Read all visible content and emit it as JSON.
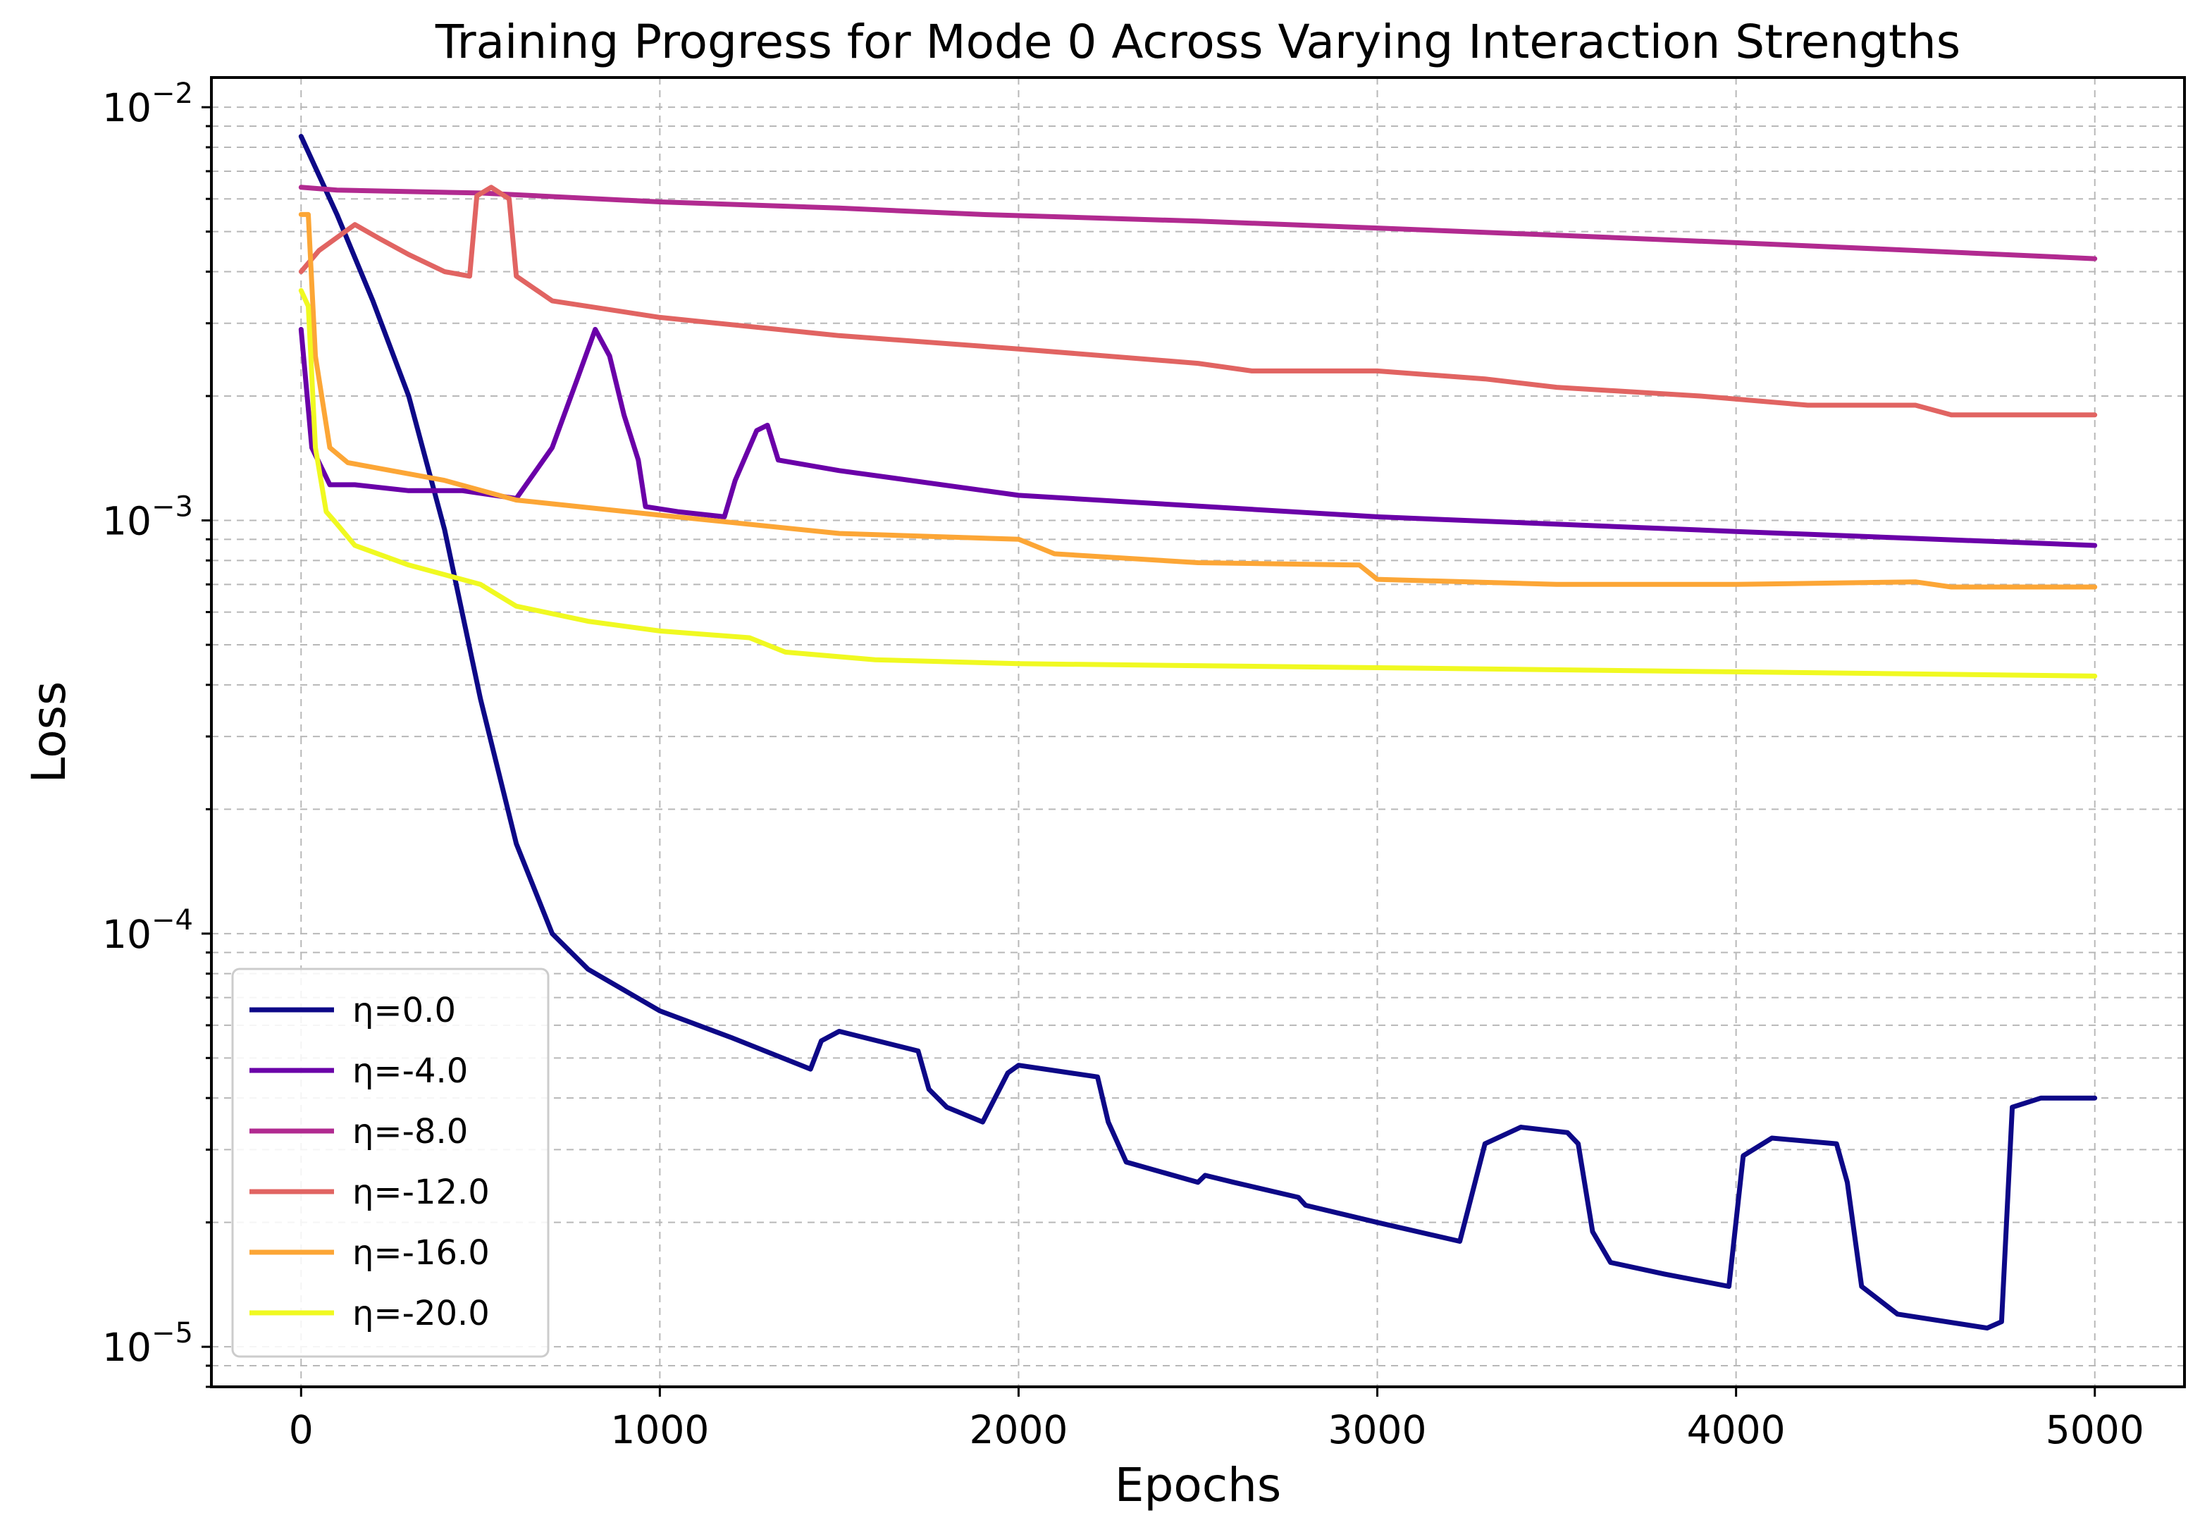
{
  "chart_data": {
    "type": "line",
    "title": "Training Progress for Mode 0 Across Varying Interaction Strengths",
    "xlabel": "Epochs",
    "ylabel": "Loss",
    "xlim": [
      -250,
      5250
    ],
    "ylim": [
      8e-06,
      0.0118
    ],
    "yscale": "log",
    "x_ticks": [
      0,
      1000,
      2000,
      3000,
      4000,
      5000
    ],
    "x_tick_labels": [
      "0",
      "1000",
      "2000",
      "3000",
      "4000",
      "5000"
    ],
    "y_ticks": [
      {
        "value": 0.01,
        "base": "10",
        "exp": "−2"
      },
      {
        "value": 0.001,
        "base": "10",
        "exp": "−3"
      },
      {
        "value": 0.0001,
        "base": "10",
        "exp": "−4"
      },
      {
        "value": 1e-05,
        "base": "10",
        "exp": "−5"
      }
    ],
    "grid": true,
    "legend_position": "lower-left",
    "series": [
      {
        "name": "η=0.0",
        "color": "#0d0887",
        "points": [
          [
            0,
            0.0085
          ],
          [
            100,
            0.0055
          ],
          [
            200,
            0.0034
          ],
          [
            300,
            0.002
          ],
          [
            400,
            0.00095
          ],
          [
            500,
            0.00037
          ],
          [
            600,
            0.000165
          ],
          [
            700,
            0.0001
          ],
          [
            800,
            8.2e-05
          ],
          [
            1000,
            6.5e-05
          ],
          [
            1200,
            5.6e-05
          ],
          [
            1420,
            4.7e-05
          ],
          [
            1450,
            5.5e-05
          ],
          [
            1500,
            5.8e-05
          ],
          [
            1720,
            5.2e-05
          ],
          [
            1750,
            4.2e-05
          ],
          [
            1800,
            3.8e-05
          ],
          [
            1900,
            3.5e-05
          ],
          [
            1970,
            4.6e-05
          ],
          [
            2000,
            4.8e-05
          ],
          [
            2220,
            4.5e-05
          ],
          [
            2250,
            3.5e-05
          ],
          [
            2300,
            2.8e-05
          ],
          [
            2500,
            2.5e-05
          ],
          [
            2520,
            2.6e-05
          ],
          [
            2600,
            2.5e-05
          ],
          [
            2780,
            2.3e-05
          ],
          [
            2800,
            2.2e-05
          ],
          [
            3000,
            2e-05
          ],
          [
            3230,
            1.8e-05
          ],
          [
            3250,
            2.1e-05
          ],
          [
            3300,
            3.1e-05
          ],
          [
            3400,
            3.4e-05
          ],
          [
            3530,
            3.3e-05
          ],
          [
            3560,
            3.1e-05
          ],
          [
            3600,
            1.9e-05
          ],
          [
            3650,
            1.6e-05
          ],
          [
            3800,
            1.5e-05
          ],
          [
            3980,
            1.4e-05
          ],
          [
            4020,
            2.9e-05
          ],
          [
            4100,
            3.2e-05
          ],
          [
            4280,
            3.1e-05
          ],
          [
            4310,
            2.5e-05
          ],
          [
            4350,
            1.4e-05
          ],
          [
            4450,
            1.2e-05
          ],
          [
            4700,
            1.11e-05
          ],
          [
            4740,
            1.15e-05
          ],
          [
            4770,
            3.8e-05
          ],
          [
            4850,
            4e-05
          ],
          [
            5000,
            4e-05
          ]
        ]
      },
      {
        "name": "η=-4.0",
        "color": "#6a00a8",
        "points": [
          [
            0,
            0.0029
          ],
          [
            30,
            0.0015
          ],
          [
            80,
            0.00122
          ],
          [
            150,
            0.00122
          ],
          [
            300,
            0.00118
          ],
          [
            450,
            0.00118
          ],
          [
            600,
            0.00113
          ],
          [
            700,
            0.0015
          ],
          [
            770,
            0.0022
          ],
          [
            820,
            0.0029
          ],
          [
            860,
            0.0025
          ],
          [
            900,
            0.0018
          ],
          [
            940,
            0.0014
          ],
          [
            960,
            0.00108
          ],
          [
            1050,
            0.00105
          ],
          [
            1180,
            0.00102
          ],
          [
            1210,
            0.00125
          ],
          [
            1270,
            0.00165
          ],
          [
            1300,
            0.0017
          ],
          [
            1330,
            0.0014
          ],
          [
            1500,
            0.00132
          ],
          [
            2000,
            0.00115
          ],
          [
            3000,
            0.00102
          ],
          [
            4000,
            0.00094
          ],
          [
            5000,
            0.00087
          ]
        ]
      },
      {
        "name": "η=-8.0",
        "color": "#b12a90",
        "points": [
          [
            0,
            0.0064
          ],
          [
            100,
            0.0063
          ],
          [
            500,
            0.0062
          ],
          [
            1000,
            0.0059
          ],
          [
            1500,
            0.0057
          ],
          [
            1900,
            0.0055
          ],
          [
            2500,
            0.0053
          ],
          [
            3000,
            0.0051
          ],
          [
            3500,
            0.0049
          ],
          [
            4000,
            0.0047
          ],
          [
            4500,
            0.0045
          ],
          [
            5000,
            0.0043
          ]
        ]
      },
      {
        "name": "η=-12.0",
        "color": "#e16462",
        "points": [
          [
            0,
            0.004
          ],
          [
            50,
            0.0045
          ],
          [
            150,
            0.0052
          ],
          [
            220,
            0.0048
          ],
          [
            300,
            0.0044
          ],
          [
            400,
            0.004
          ],
          [
            470,
            0.0039
          ],
          [
            490,
            0.0061
          ],
          [
            530,
            0.0064
          ],
          [
            580,
            0.006
          ],
          [
            600,
            0.0039
          ],
          [
            700,
            0.0034
          ],
          [
            1000,
            0.0031
          ],
          [
            1500,
            0.0028
          ],
          [
            2000,
            0.0026
          ],
          [
            2500,
            0.0024
          ],
          [
            2650,
            0.0023
          ],
          [
            3000,
            0.0023
          ],
          [
            3300,
            0.0022
          ],
          [
            3500,
            0.0021
          ],
          [
            3900,
            0.002
          ],
          [
            4200,
            0.0019
          ],
          [
            4500,
            0.0019
          ],
          [
            4600,
            0.0018
          ],
          [
            5000,
            0.0018
          ]
        ]
      },
      {
        "name": "η=-16.0",
        "color": "#fca636",
        "points": [
          [
            0,
            0.0055
          ],
          [
            20,
            0.0055
          ],
          [
            40,
            0.0025
          ],
          [
            80,
            0.0015
          ],
          [
            130,
            0.00138
          ],
          [
            400,
            0.00125
          ],
          [
            600,
            0.00112
          ],
          [
            1000,
            0.00103
          ],
          [
            1500,
            0.00093
          ],
          [
            2000,
            0.0009
          ],
          [
            2100,
            0.00083
          ],
          [
            2500,
            0.00079
          ],
          [
            2950,
            0.00078
          ],
          [
            3000,
            0.00072
          ],
          [
            3500,
            0.0007
          ],
          [
            4000,
            0.0007
          ],
          [
            4500,
            0.00071
          ],
          [
            4600,
            0.00069
          ],
          [
            5000,
            0.00069
          ]
        ]
      },
      {
        "name": "η=-20.0",
        "color": "#f0f921",
        "points": [
          [
            0,
            0.0036
          ],
          [
            20,
            0.0033
          ],
          [
            40,
            0.0015
          ],
          [
            70,
            0.00105
          ],
          [
            100,
            0.00098
          ],
          [
            150,
            0.00087
          ],
          [
            300,
            0.00078
          ],
          [
            500,
            0.0007
          ],
          [
            600,
            0.00062
          ],
          [
            800,
            0.00057
          ],
          [
            1000,
            0.00054
          ],
          [
            1250,
            0.00052
          ],
          [
            1350,
            0.00048
          ],
          [
            1600,
            0.00046
          ],
          [
            2000,
            0.00045
          ],
          [
            3000,
            0.00044
          ],
          [
            4000,
            0.00043
          ],
          [
            5000,
            0.00042
          ]
        ]
      }
    ]
  }
}
